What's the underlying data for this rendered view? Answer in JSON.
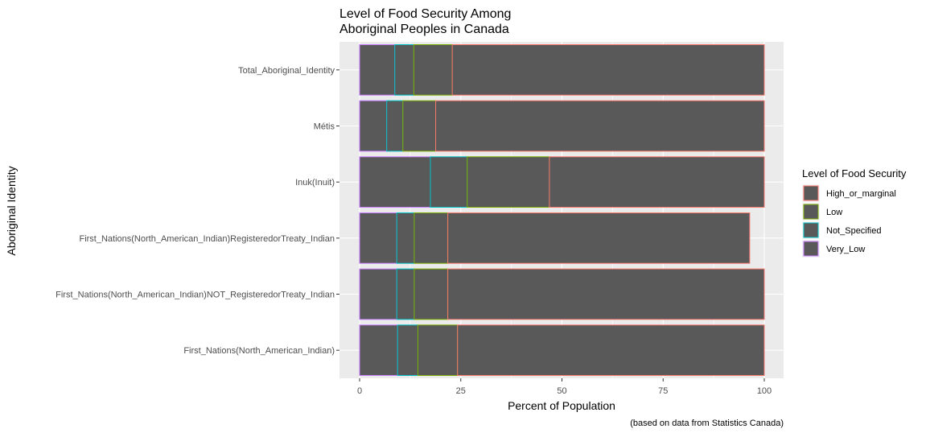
{
  "chart_data": {
    "type": "bar",
    "orientation": "horizontal",
    "stacked": true,
    "title_lines": [
      "Level of Food Security Among",
      "Aboriginal Peoples in Canada"
    ],
    "xlabel": "Percent of Population",
    "ylabel": "Aboriginal Identity",
    "caption": "(based on data from Statistics Canada)",
    "xlim": [
      0,
      100
    ],
    "xticks": [
      "0",
      "25",
      "50",
      "75",
      "100"
    ],
    "grid": true,
    "legend": {
      "title": "Level of Food Security",
      "placement": "right",
      "entries": [
        {
          "name": "High_or_marginal",
          "color": "#F8766D"
        },
        {
          "name": "Low",
          "color": "#7CAE00"
        },
        {
          "name": "Not_Specified",
          "color": "#00BFC4"
        },
        {
          "name": "Very_Low",
          "color": "#C77CFF"
        }
      ]
    },
    "bar_fill": "#595959",
    "panel_background": "#EBEBEB",
    "stack_order": [
      "Very_Low",
      "Not_Specified",
      "Low",
      "High_or_marginal"
    ],
    "categories": [
      "Total_Aboriginal_Identity",
      "Métis",
      "Inuk(Inuit)",
      "First_Nations(North_American_Indian)RegisteredorTreaty_Indian",
      "First_Nations(North_American_Indian)NOT_RegisteredorTreaty_Indian",
      "First_Nations(North_American_Indian)"
    ],
    "series": [
      {
        "name": "Very_Low",
        "values": [
          8.7,
          6.7,
          17.5,
          9.2,
          9.2,
          9.4
        ]
      },
      {
        "name": "Not_Specified",
        "values": [
          4.7,
          4.0,
          9.1,
          4.3,
          4.3,
          5.0
        ]
      },
      {
        "name": "Low",
        "values": [
          9.5,
          8.1,
          20.3,
          8.3,
          8.3,
          9.8
        ]
      },
      {
        "name": "High_or_marginal",
        "values": [
          77.1,
          81.2,
          53.1,
          74.6,
          78.2,
          75.8
        ]
      }
    ]
  }
}
